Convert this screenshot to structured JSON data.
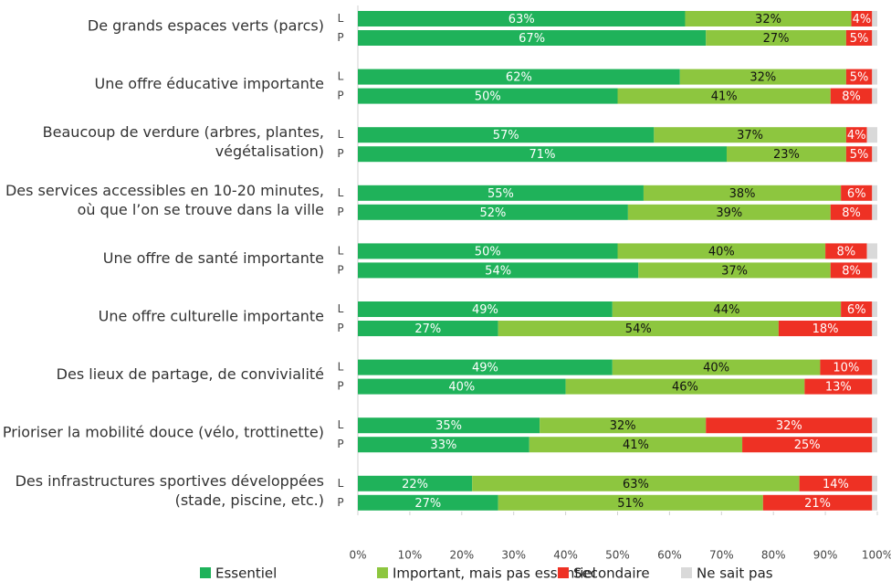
{
  "chart_data": {
    "type": "stacked-barh",
    "groups": [
      [
        "De grands espaces verts (parcs)"
      ],
      [
        "Une offre éducative importante"
      ],
      [
        "Beaucoup de verdure (arbres, plantes,",
        "végétalisation)"
      ],
      [
        "Des services accessibles en 10-20 minutes,",
        "où que l’on se trouve dans la ville"
      ],
      [
        "Une offre de santé importante"
      ],
      [
        "Une offre culturelle importante"
      ],
      [
        "Des lieux de partage, de convivialité"
      ],
      [
        "Prioriser la mobilité douce (vélo, trottinette)"
      ],
      [
        "Des infrastructures sportives développées",
        "(stade, piscine, etc.)"
      ]
    ],
    "categories": [
      "L",
      "P",
      "L",
      "P",
      "L",
      "P",
      "L",
      "P",
      "L",
      "P",
      "L",
      "P",
      "L",
      "P",
      "L",
      "P",
      "L",
      "P"
    ],
    "series": [
      {
        "name": "Essentiel",
        "color": "#1fb25a",
        "label_color": "#ffffff",
        "values": [
          63,
          67,
          62,
          50,
          57,
          71,
          55,
          52,
          50,
          54,
          49,
          27,
          49,
          40,
          35,
          33,
          22,
          27
        ],
        "value_labels": [
          "63%",
          "67%",
          "62%",
          "50%",
          "57%",
          "71%",
          "55%",
          "52%",
          "50%",
          "54%",
          "49%",
          "27%",
          "49%",
          "40%",
          "35%",
          "33%",
          "22%",
          "27%"
        ]
      },
      {
        "name": "Important, mais pas essentiel",
        "color": "#8dc63f",
        "label_color": "#111111",
        "values": [
          32,
          27,
          32,
          41,
          37,
          23,
          38,
          39,
          40,
          37,
          44,
          54,
          40,
          46,
          32,
          41,
          63,
          51
        ],
        "value_labels": [
          "32%",
          "27%",
          "32%",
          "41%",
          "37%",
          "23%",
          "38%",
          "39%",
          "40%",
          "37%",
          "44%",
          "54%",
          "40%",
          "46%",
          "32%",
          "41%",
          "63%",
          "51%"
        ]
      },
      {
        "name": "Secondaire",
        "color": "#ee3124",
        "label_color": "#ffffff",
        "values": [
          4,
          5,
          5,
          8,
          4,
          5,
          6,
          8,
          8,
          8,
          6,
          18,
          10,
          13,
          32,
          25,
          14,
          21
        ],
        "value_labels": [
          "4%",
          "5%",
          "5%",
          "8%",
          "4%",
          "5%",
          "6%",
          "8%",
          "8%",
          "8%",
          "6%",
          "18%",
          "10%",
          "13%",
          "32%",
          "25%",
          "14%",
          "21%"
        ]
      },
      {
        "name": "Ne sait pas",
        "color": "#d9d9d9",
        "values": [
          1,
          1,
          1,
          1,
          2,
          1,
          1,
          1,
          2,
          1,
          1,
          1,
          1,
          1,
          1,
          1,
          1,
          1
        ]
      }
    ],
    "xlim": [
      0,
      100
    ],
    "xticks": [
      {
        "value": 0,
        "label": "0%"
      },
      {
        "value": 10,
        "label": "10%"
      },
      {
        "value": 20,
        "label": "20%"
      },
      {
        "value": 30,
        "label": "30%"
      },
      {
        "value": 40,
        "label": "40%"
      },
      {
        "value": 50,
        "label": "50%"
      },
      {
        "value": 60,
        "label": "60%"
      },
      {
        "value": 70,
        "label": "70%"
      },
      {
        "value": 80,
        "label": "80%"
      },
      {
        "value": 90,
        "label": "90%"
      },
      {
        "value": 100,
        "label": "100%"
      }
    ],
    "legend": "bottom"
  }
}
